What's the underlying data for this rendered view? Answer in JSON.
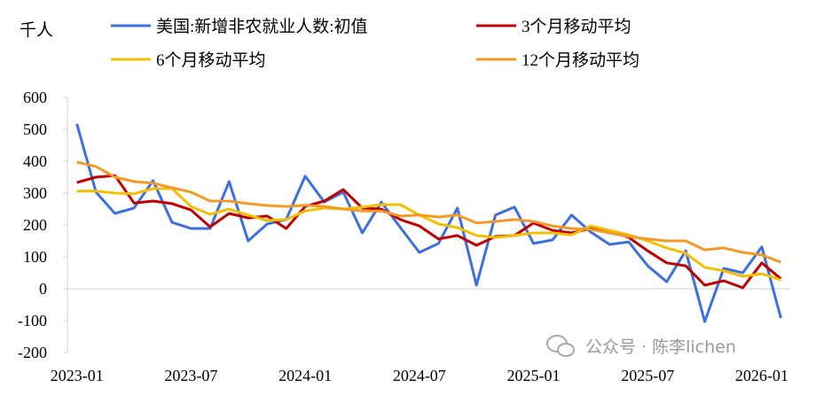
{
  "chart_data": {
    "type": "line",
    "unit_label": "千人",
    "ylim": [
      -200,
      600
    ],
    "yticks": [
      600,
      500,
      400,
      300,
      200,
      100,
      0,
      -100,
      -200
    ],
    "categories": [
      "2023-01",
      "2023-02",
      "2023-03",
      "2023-04",
      "2023-05",
      "2023-06",
      "2023-07",
      "2023-08",
      "2023-09",
      "2023-10",
      "2023-11",
      "2023-12",
      "2024-01",
      "2024-02",
      "2024-03",
      "2024-04",
      "2024-05",
      "2024-06",
      "2024-07",
      "2024-08",
      "2024-09",
      "2024-10",
      "2024-11",
      "2024-12",
      "2025-01",
      "2025-02",
      "2025-03",
      "2025-04",
      "2025-05",
      "2025-06",
      "2025-07",
      "2025-08",
      "2025-09",
      "2025-10",
      "2025-11",
      "2025-12",
      "2026-01",
      "2026-02"
    ],
    "xtick_labels": [
      "2023-01",
      "2023-07",
      "2024-01",
      "2024-07",
      "2025-01",
      "2025-07",
      "2026-01"
    ],
    "grid": false,
    "legend_position": "top",
    "series": [
      {
        "name": "美国:新增非农就业人数:初值",
        "color": "#3C6FE0",
        "values": [
          517,
          303,
          236,
          253,
          339,
          208,
          189,
          189,
          336,
          150,
          203,
          217,
          353,
          272,
          303,
          175,
          272,
          192,
          114,
          142,
          253,
          11,
          231,
          256,
          142,
          153,
          231,
          178,
          139,
          147,
          72,
          22,
          119,
          -103,
          64,
          50,
          131,
          -92
        ]
      },
      {
        "name": "3个月移动平均",
        "color": "#C00000",
        "values": [
          333,
          350,
          355,
          269,
          275,
          267,
          247,
          194,
          236,
          222,
          228,
          189,
          258,
          275,
          311,
          253,
          250,
          217,
          197,
          156,
          167,
          136,
          164,
          167,
          206,
          183,
          175,
          189,
          181,
          161,
          119,
          81,
          72,
          11,
          25,
          3,
          81,
          31
        ]
      },
      {
        "name": "6个月移动平均",
        "color": "#F2C000",
        "values": [
          306,
          306,
          300,
          298,
          314,
          314,
          258,
          233,
          250,
          231,
          214,
          217,
          244,
          253,
          250,
          256,
          264,
          264,
          231,
          203,
          192,
          167,
          161,
          167,
          175,
          175,
          169,
          197,
          183,
          169,
          150,
          128,
          111,
          67,
          56,
          39,
          47,
          28
        ]
      },
      {
        "name": "12个月移动平均",
        "color": "#F39A26",
        "values": [
          397,
          383,
          350,
          336,
          331,
          317,
          303,
          275,
          275,
          267,
          261,
          258,
          262,
          258,
          250,
          244,
          244,
          228,
          231,
          225,
          231,
          206,
          211,
          217,
          211,
          197,
          189,
          186,
          175,
          164,
          156,
          150,
          150,
          122,
          128,
          114,
          106,
          83
        ]
      }
    ]
  },
  "watermark": "公众号 · 陈李lichen"
}
